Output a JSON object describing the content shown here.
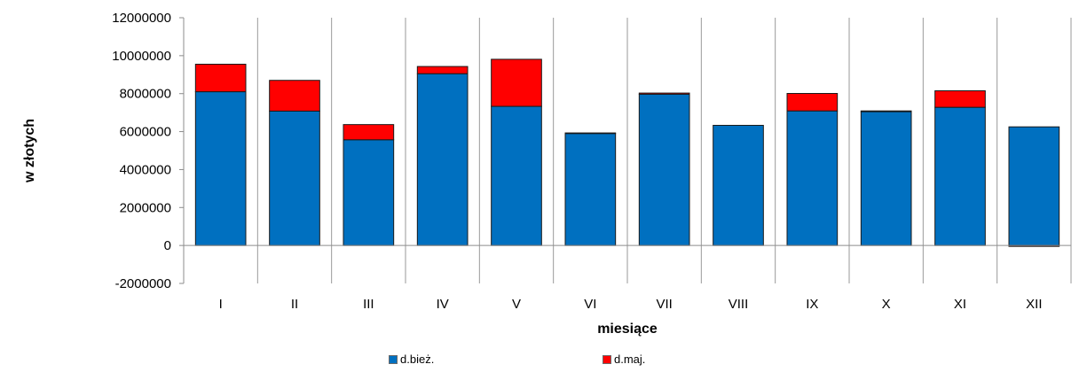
{
  "chart_data": {
    "type": "bar",
    "stacked": true,
    "categories": [
      "I",
      "II",
      "III",
      "IV",
      "V",
      "VI",
      "VII",
      "VIII",
      "IX",
      "X",
      "XI",
      "XII"
    ],
    "series": [
      {
        "name": "d.bież.",
        "color": "#0070C0",
        "values": [
          8100000,
          7080000,
          5570000,
          9050000,
          7330000,
          5900000,
          7970000,
          6330000,
          7090000,
          7050000,
          7280000,
          6250000
        ]
      },
      {
        "name": "d.maj.",
        "color": "#FF0000",
        "values": [
          1450000,
          1620000,
          800000,
          380000,
          2480000,
          30000,
          60000,
          0,
          920000,
          40000,
          870000,
          -50000
        ]
      }
    ],
    "xlabel": "miesiące",
    "ylabel": "w złotych",
    "ylim": [
      -2000000,
      12000000
    ],
    "yticks": [
      12000000,
      10000000,
      8000000,
      6000000,
      4000000,
      2000000,
      0,
      -2000000
    ],
    "ytick_labels": [
      "12000000",
      "10000000",
      "8000000",
      "6000000",
      "4000000",
      "2000000",
      "0",
      "-2000000"
    ],
    "grid": "vertical category separators",
    "legend_position": "bottom"
  }
}
